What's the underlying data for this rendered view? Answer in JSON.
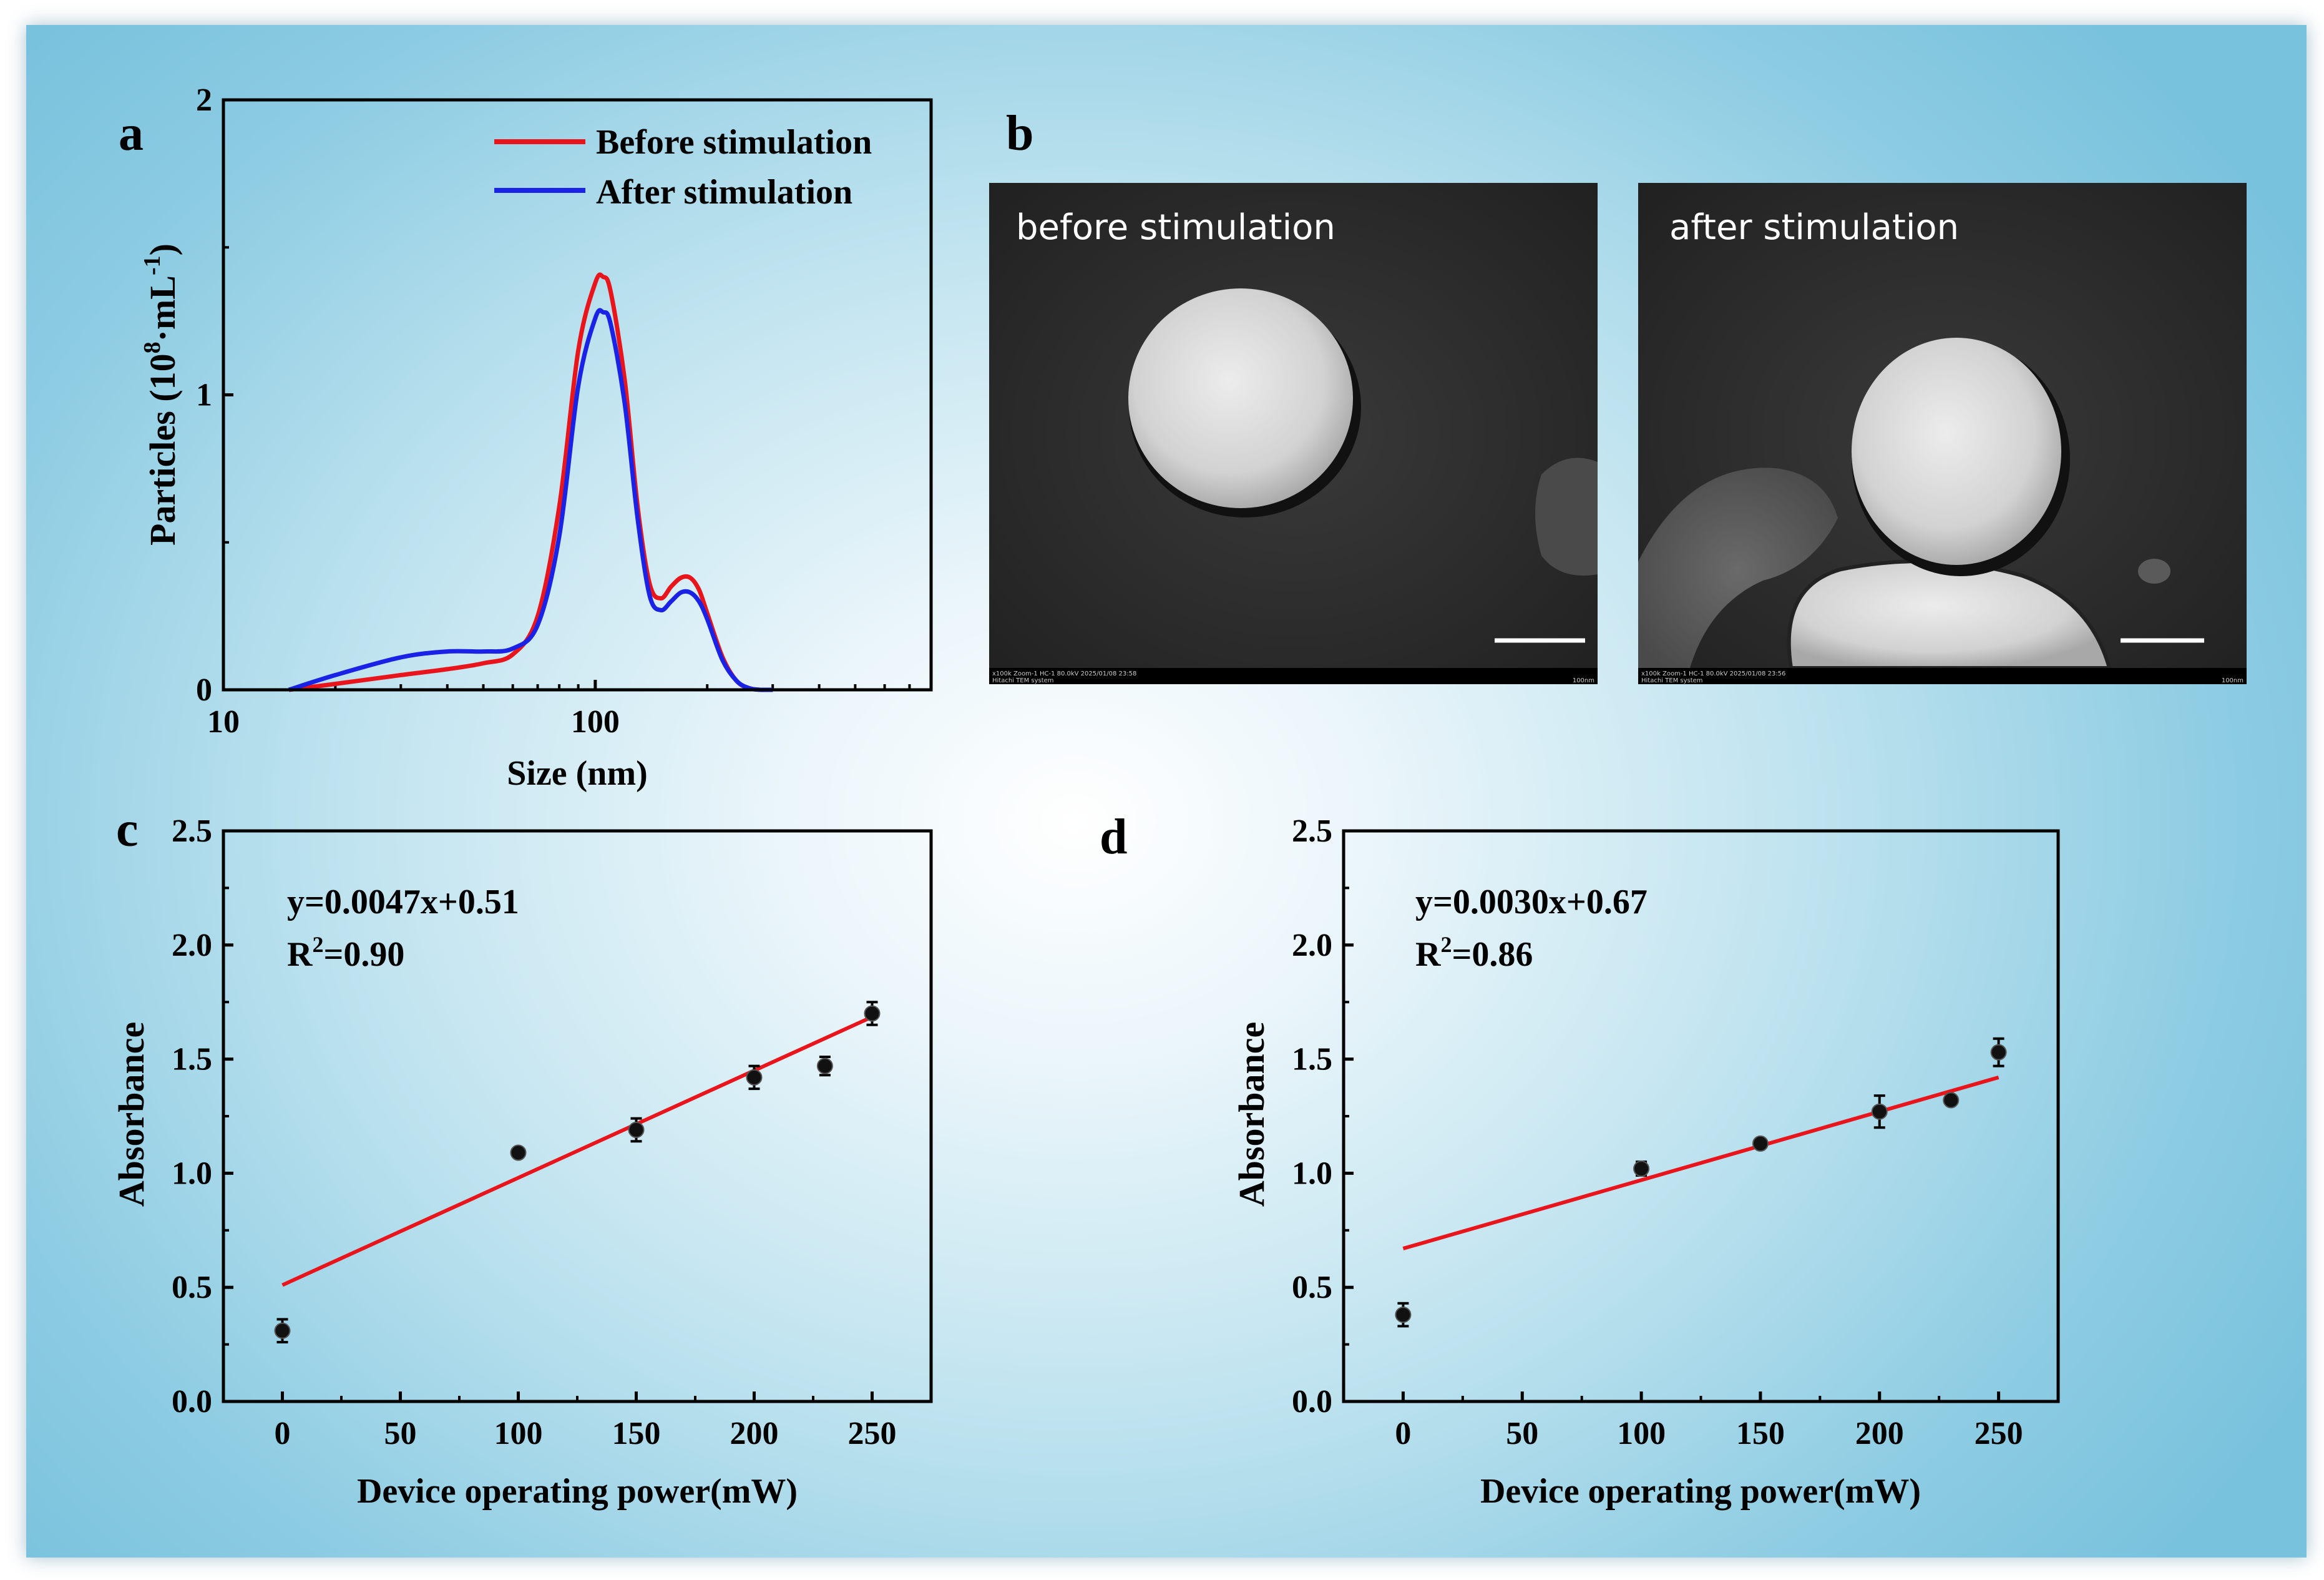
{
  "panel_a": {
    "letter": "a",
    "ylabel_main": "Particles (10",
    "ylabel_sup1": "8",
    "ylabel_mid": "·mL",
    "ylabel_sup2": "-1",
    "ylabel_end": ")",
    "xlabel": "Size (nm)"
  },
  "panel_b": {
    "letter": "b",
    "left_label": "before stimulation",
    "right_label": "after stimulation",
    "left_footer": "x100k Zoom-1 HC-1 80.0kV 2025/01/08 23:58",
    "left_footer2": "Hitachi TEM system",
    "left_scale": "100nm",
    "right_footer": "x100k Zoom-1 HC-1 80.0kV 2025/01/08 23:56",
    "right_footer2": "Hitachi TEM system",
    "right_scale": "100nm"
  },
  "panel_c": {
    "letter": "c",
    "equation": "y=0.0047x+0.51",
    "r2_prefix": "R",
    "r2_sup": "2",
    "r2_value": "=0.90"
  },
  "panel_d": {
    "letter": "d",
    "equation": "y=0.0030x+0.67",
    "r2_prefix": "R",
    "r2_sup": "2",
    "r2_value": "=0.86"
  },
  "colors": {
    "before": "#e8161c",
    "after": "#1a22e6",
    "fit": "#e8161c",
    "points": "#111111"
  },
  "chart_data": [
    {
      "id": "a",
      "type": "line",
      "title": "",
      "xlabel": "Size (nm)",
      "ylabel": "Particles (10^8·mL^-1)",
      "xscale": "log",
      "xlim": [
        10,
        800
      ],
      "ylim": [
        0,
        2
      ],
      "xticks": [
        10,
        100
      ],
      "xtick_labels": [
        "10",
        "100"
      ],
      "yticks": [
        0,
        1,
        2
      ],
      "ytick_labels": [
        "0",
        "1",
        "2"
      ],
      "legend": "top-right",
      "series": [
        {
          "name": "Before stimulation",
          "color": "#e8161c",
          "x": [
            15,
            20,
            30,
            40,
            50,
            60,
            70,
            80,
            90,
            100,
            105,
            110,
            120,
            130,
            140,
            150,
            160,
            170,
            180,
            190,
            200,
            220,
            240,
            260,
            280,
            300
          ],
          "y": [
            0,
            0.02,
            0.05,
            0.07,
            0.09,
            0.12,
            0.25,
            0.62,
            1.15,
            1.38,
            1.4,
            1.35,
            1.05,
            0.62,
            0.36,
            0.31,
            0.35,
            0.38,
            0.38,
            0.34,
            0.26,
            0.11,
            0.03,
            0.005,
            0,
            0
          ]
        },
        {
          "name": "After stimulation",
          "color": "#1a22e6",
          "x": [
            15,
            20,
            30,
            40,
            50,
            60,
            70,
            80,
            90,
            100,
            105,
            110,
            120,
            130,
            140,
            150,
            160,
            170,
            180,
            190,
            200,
            220,
            240,
            260,
            280,
            300
          ],
          "y": [
            0,
            0.05,
            0.11,
            0.13,
            0.13,
            0.14,
            0.22,
            0.52,
            1.03,
            1.26,
            1.28,
            1.24,
            0.97,
            0.58,
            0.32,
            0.27,
            0.3,
            0.33,
            0.33,
            0.3,
            0.24,
            0.1,
            0.03,
            0.005,
            0,
            0
          ]
        }
      ]
    },
    {
      "id": "c",
      "type": "scatter",
      "title": "",
      "xlabel": "Device operating power(mW)",
      "ylabel": "Absorbance",
      "xlim": [
        -25,
        275
      ],
      "ylim": [
        0,
        2.5
      ],
      "xticks": [
        0,
        50,
        100,
        150,
        200,
        250
      ],
      "xtick_labels": [
        "0",
        "50",
        "100",
        "150",
        "200",
        "250"
      ],
      "yticks": [
        0,
        0.5,
        1.0,
        1.5,
        2.0,
        2.5
      ],
      "ytick_labels": [
        "0.0",
        "0.5",
        "1.0",
        "1.5",
        "2.0",
        "2.5"
      ],
      "x": [
        0,
        100,
        150,
        200,
        230,
        250
      ],
      "y": [
        0.31,
        1.09,
        1.19,
        1.42,
        1.47,
        1.7
      ],
      "err": [
        0.05,
        0.02,
        0.05,
        0.05,
        0.04,
        0.05
      ],
      "fit": {
        "slope": 0.0047,
        "intercept": 0.51,
        "x_range": [
          0,
          250
        ]
      }
    },
    {
      "id": "d",
      "type": "scatter",
      "title": "",
      "xlabel": "Device operating power(mW)",
      "ylabel": "Absorbance",
      "xlim": [
        -25,
        275
      ],
      "ylim": [
        0,
        2.5
      ],
      "xticks": [
        0,
        50,
        100,
        150,
        200,
        250
      ],
      "xtick_labels": [
        "0",
        "50",
        "100",
        "150",
        "200",
        "250"
      ],
      "yticks": [
        0,
        0.5,
        1.0,
        1.5,
        2.0,
        2.5
      ],
      "ytick_labels": [
        "0.0",
        "0.5",
        "1.0",
        "1.5",
        "2.0",
        "2.5"
      ],
      "x": [
        0,
        100,
        150,
        200,
        230,
        250
      ],
      "y": [
        0.38,
        1.02,
        1.13,
        1.27,
        1.32,
        1.53
      ],
      "err": [
        0.05,
        0.03,
        0.01,
        0.07,
        0.01,
        0.06
      ],
      "fit": {
        "slope": 0.003,
        "intercept": 0.67,
        "x_range": [
          0,
          250
        ]
      }
    }
  ]
}
